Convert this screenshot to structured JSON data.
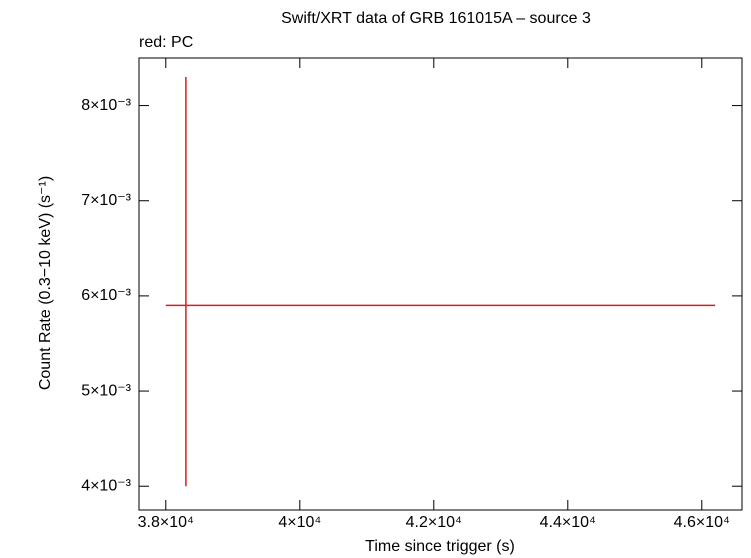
{
  "chart_data": {
    "type": "errorbar",
    "title": "Swift/XRT data of GRB 161015A – source 3",
    "subtitle": "red: PC",
    "x_label": "Time since trigger (s)",
    "y_label": "Count Rate (0.3−10 keV) (s⁻¹)",
    "series": [
      {
        "name": "PC",
        "color": "#d62020",
        "x": [
          38300
        ],
        "x_low": [
          38000
        ],
        "x_high": [
          46200
        ],
        "values": [
          0.0059
        ],
        "y_low": [
          0.004
        ],
        "y_high": [
          0.0083
        ]
      }
    ],
    "xlim": [
      37600,
      46600
    ],
    "xticks": [
      {
        "value": 38000,
        "label": "3.8×10⁴"
      },
      {
        "value": 40000,
        "label": "4×10⁴"
      },
      {
        "value": 42000,
        "label": "4.2×10⁴"
      },
      {
        "value": 44000,
        "label": "4.4×10⁴"
      },
      {
        "value": 46000,
        "label": "4.6×10⁴"
      }
    ],
    "ylim": [
      0.00375,
      0.0085
    ],
    "yticks": [
      {
        "value": 0.004,
        "label": "4×10⁻³"
      },
      {
        "value": 0.005,
        "label": "5×10⁻³"
      },
      {
        "value": 0.006,
        "label": "6×10⁻³"
      },
      {
        "value": 0.007,
        "label": "7×10⁻³"
      },
      {
        "value": 0.008,
        "label": "8×10⁻³"
      }
    ],
    "grid": false
  }
}
